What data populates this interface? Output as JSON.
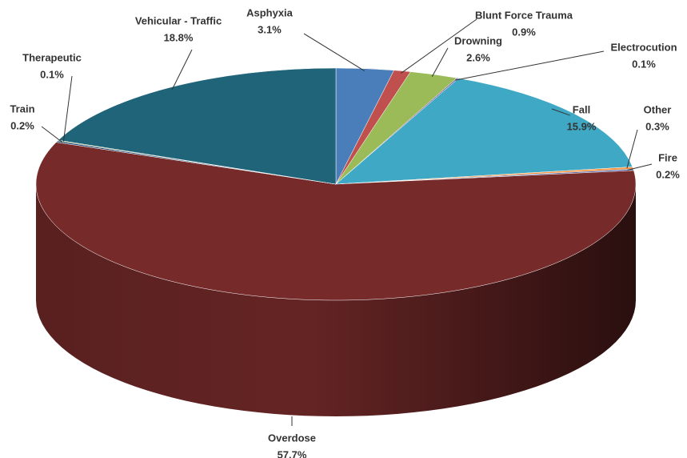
{
  "chart_data": {
    "type": "pie",
    "categories": [
      "Asphyxia",
      "Blunt Force Trauma",
      "Drowning",
      "Electrocution",
      "Fall",
      "Other",
      "Fire",
      "Overdose",
      "Train",
      "Therapeutic",
      "Vehicular - Traffic"
    ],
    "values": [
      3.1,
      0.9,
      2.6,
      0.1,
      15.9,
      0.3,
      0.2,
      57.7,
      0.2,
      0.1,
      18.8
    ],
    "value_labels": [
      "3.1%",
      "0.9%",
      "2.6%",
      "0.1%",
      "15.9%",
      "0.3%",
      "0.2%",
      "57.7%",
      "0.2%",
      "0.1%",
      "18.8%"
    ],
    "colors": [
      "#4a7ebb",
      "#c0504d",
      "#9bbb59",
      "#8064a2",
      "#3fa9c5",
      "#f79646",
      "#4f5fa0",
      "#772a2a",
      "#2c4d75",
      "#4d8a3a",
      "#1f6478"
    ]
  }
}
